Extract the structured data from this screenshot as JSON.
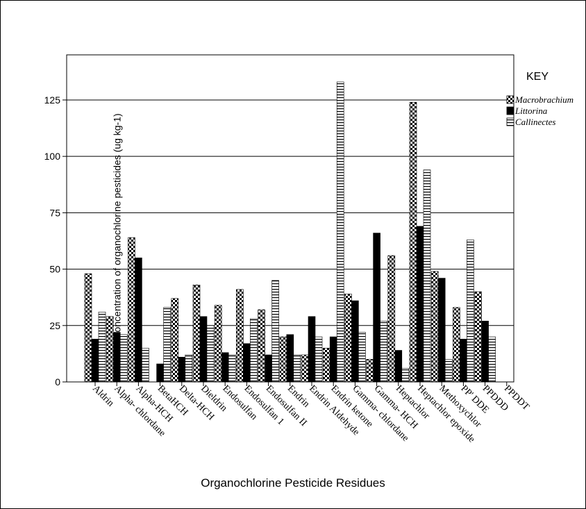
{
  "chart_data": {
    "type": "bar",
    "xlabel": "Organochlorine Pesticide Residues",
    "ylabel": "Concentration of organochlorine pesticides (ug kg-1)",
    "ylim": [
      0,
      145
    ],
    "yticks": [
      0,
      25,
      50,
      75,
      100,
      125
    ],
    "grid": true,
    "legend_title": "KEY",
    "legend_position": "right",
    "categories": [
      "Aldrin",
      "Alpha- chlordane",
      "Alpha-HCH",
      "BetaHCH",
      "Delta-HCH",
      "Dieldrin",
      "Endosulfan",
      "Endosulfan 1",
      "Endosulfan II",
      "Endrin",
      "Endrin Aldehyde",
      "Endrin ketone",
      "Gamma- chlordane",
      "Gamma- HCH",
      "Heptachlor",
      "Heptachlor epoxide",
      "Methoxychlor",
      "PP' DDE",
      "PPDDD",
      "PPDDT"
    ],
    "series": [
      {
        "name": "Macrobrachium",
        "pattern": "checker",
        "values": [
          48,
          29,
          64,
          0,
          37,
          43,
          34,
          41,
          32,
          20,
          12,
          15,
          39,
          10,
          56,
          124,
          49,
          33,
          40,
          0
        ]
      },
      {
        "name": "Littorina",
        "pattern": "solid",
        "values": [
          19,
          22,
          55,
          8,
          11,
          29,
          13,
          17,
          12,
          21,
          29,
          20,
          36,
          66,
          14,
          69,
          46,
          19,
          27,
          0
        ]
      },
      {
        "name": "Callinectes",
        "pattern": "stripes",
        "values": [
          31,
          21,
          15,
          33,
          12,
          25,
          12,
          28,
          45,
          12,
          20,
          133,
          22,
          27,
          6,
          94,
          10,
          63,
          20,
          0
        ]
      }
    ]
  },
  "colors": {
    "bar_fill": "#000000",
    "background": "#ffffff",
    "grid": "#000000"
  }
}
